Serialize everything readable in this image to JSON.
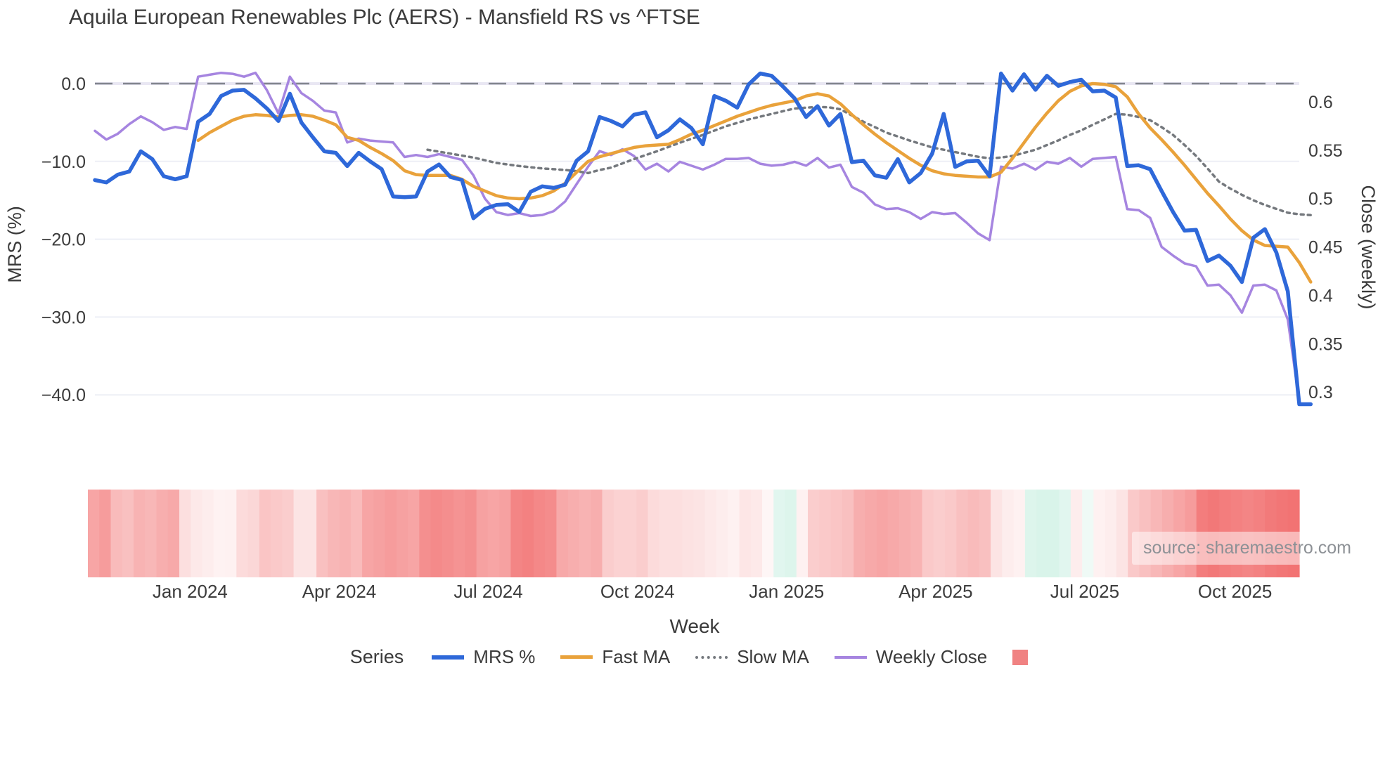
{
  "title": "Aquila European Renewables Plc (AERS) - Mansfield RS vs ^FTSE",
  "watermark": "source: sharemaestro.com",
  "axes": {
    "left": {
      "label": "MRS (%)",
      "tick_labels": [
        "0.0",
        "−10.0",
        "−20.0",
        "−30.0",
        "−40.0"
      ],
      "tick_values": [
        0,
        -10,
        -20,
        -30,
        -40
      ]
    },
    "right": {
      "label": "Close (weekly)",
      "tick_labels": [
        "0.6",
        "0.55",
        "0.5",
        "0.45",
        "0.4",
        "0.35",
        "0.3"
      ],
      "tick_values": [
        0.6,
        0.55,
        0.5,
        0.45,
        0.4,
        0.35,
        0.3
      ]
    },
    "bottom": {
      "label": "Week",
      "tick_labels": [
        "Jan 2024",
        "Apr 2024",
        "Jul 2024",
        "Oct 2024",
        "Jan 2025",
        "Apr 2025",
        "Jul 2025",
        "Oct 2025"
      ],
      "tick_weeks": [
        8.3,
        21.3,
        34.3,
        47.3,
        60.3,
        73.3,
        86.3,
        99.4
      ]
    }
  },
  "legend": {
    "title": "Series",
    "heat_swatch_color": "#f08282"
  },
  "colors": {
    "grid": "#edeff6",
    "zero_grid": "#e9e7f3",
    "zero_dash": "#82868e",
    "tick_text": "#3c3c3c",
    "axis_title_text": "#3a3a3a",
    "heat_neg_base": "#ee4b4b",
    "heat_pos_base": "#78d7b4"
  },
  "chart_data": {
    "type": "line",
    "x_unit": "week_index",
    "n_weeks": 106,
    "x_range_note": "weekly points, Nov 2023 through Nov 2025",
    "left_axis_range": [
      -44,
      2.8
    ],
    "right_axis_range": [
      0.28,
      0.635
    ],
    "grid": true,
    "zero_line": 0,
    "series": [
      {
        "name": "MRS %",
        "axis": "left",
        "color": "#2e68d9",
        "width": 5.5,
        "dash": "solid",
        "values": [
          -12.4,
          -12.7,
          -11.7,
          -11.3,
          -8.7,
          -9.7,
          -11.9,
          -12.3,
          -11.9,
          -4.9,
          -3.9,
          -1.6,
          -0.9,
          -0.8,
          -1.9,
          -3.2,
          -4.8,
          -1.3,
          -5.0,
          -6.9,
          -8.7,
          -8.9,
          -10.6,
          -8.9,
          -10.0,
          -11.0,
          -14.5,
          -14.6,
          -14.5,
          -11.3,
          -10.4,
          -12.0,
          -12.4,
          -17.3,
          -16.1,
          -15.6,
          -15.5,
          -16.5,
          -13.9,
          -13.2,
          -13.4,
          -13.0,
          -9.9,
          -8.7,
          -4.3,
          -4.8,
          -5.5,
          -4.0,
          -3.7,
          -6.9,
          -6.0,
          -4.6,
          -5.7,
          -7.8,
          -1.6,
          -2.2,
          -3.1,
          -0.1,
          1.3,
          1.0,
          -0.4,
          -1.9,
          -4.3,
          -2.9,
          -5.4,
          -3.9,
          -10.1,
          -9.9,
          -11.8,
          -12.1,
          -9.7,
          -12.7,
          -11.5,
          -9.0,
          -3.9,
          -10.7,
          -10.0,
          -9.9,
          -11.9,
          1.3,
          -0.9,
          1.2,
          -0.8,
          1.0,
          -0.3,
          0.2,
          0.5,
          -1.0,
          -0.9,
          -1.8,
          -10.6,
          -10.5,
          -11.0,
          -13.8,
          -16.5,
          -18.9,
          -18.8,
          -22.8,
          -22.1,
          -23.4,
          -25.5,
          -19.8,
          -18.7,
          -21.7,
          -26.7,
          -41.2,
          -41.2
        ]
      },
      {
        "name": "Fast MA",
        "axis": "left",
        "color": "#e9a23b",
        "width": 4.5,
        "dash": "solid",
        "values": [
          null,
          null,
          null,
          null,
          null,
          null,
          null,
          null,
          null,
          -7.3,
          -6.3,
          -5.5,
          -4.7,
          -4.2,
          -4.0,
          -4.1,
          -4.3,
          -4.1,
          -4.0,
          -4.2,
          -4.7,
          -5.3,
          -6.9,
          -7.3,
          -8.2,
          -9.0,
          -9.9,
          -11.2,
          -11.7,
          -11.8,
          -11.8,
          -11.8,
          -12.3,
          -13.2,
          -13.8,
          -14.4,
          -14.7,
          -14.8,
          -14.7,
          -14.4,
          -13.8,
          -12.8,
          -11.4,
          -10.0,
          -9.4,
          -9.0,
          -8.6,
          -8.2,
          -8.0,
          -7.9,
          -7.8,
          -7.2,
          -6.5,
          -6.0,
          -5.4,
          -4.8,
          -4.2,
          -3.7,
          -3.2,
          -2.8,
          -2.5,
          -2.2,
          -1.6,
          -1.3,
          -1.6,
          -2.6,
          -4.0,
          -5.3,
          -6.5,
          -7.6,
          -8.6,
          -9.6,
          -10.5,
          -11.2,
          -11.6,
          -11.8,
          -11.9,
          -12.0,
          -12.0,
          -11.4,
          -9.6,
          -7.6,
          -5.6,
          -3.8,
          -2.2,
          -1.0,
          -0.3,
          0.0,
          -0.1,
          -0.4,
          -1.7,
          -3.9,
          -5.7,
          -7.2,
          -8.8,
          -10.5,
          -12.3,
          -14.1,
          -15.7,
          -17.4,
          -18.9,
          -20.1,
          -20.8,
          -20.9,
          -21.0,
          -23.0,
          -25.5
        ]
      },
      {
        "name": "Slow MA",
        "axis": "left",
        "color": "#75797e",
        "width": 3.5,
        "dash": "dot",
        "values": [
          null,
          null,
          null,
          null,
          null,
          null,
          null,
          null,
          null,
          null,
          null,
          null,
          null,
          null,
          null,
          null,
          null,
          null,
          null,
          null,
          null,
          null,
          null,
          null,
          null,
          null,
          null,
          null,
          null,
          -8.5,
          -8.75,
          -9.0,
          -9.25,
          -9.5,
          -9.85,
          -10.2,
          -10.4,
          -10.6,
          -10.75,
          -10.9,
          -11.0,
          -11.1,
          -11.25,
          -11.5,
          -11.1,
          -10.8,
          -10.25,
          -9.7,
          -9.2,
          -8.7,
          -8.15,
          -7.6,
          -7.1,
          -6.6,
          -6.05,
          -5.5,
          -5.05,
          -4.6,
          -4.25,
          -3.9,
          -3.55,
          -3.2,
          -3.1,
          -3.0,
          -3.05,
          -3.3,
          -4.1,
          -4.9,
          -5.6,
          -6.3,
          -6.8,
          -7.3,
          -7.75,
          -8.2,
          -8.5,
          -8.8,
          -9.1,
          -9.4,
          -9.6,
          -9.5,
          -9.3,
          -8.9,
          -8.5,
          -7.9,
          -7.3,
          -6.6,
          -6.0,
          -5.3,
          -4.6,
          -3.9,
          -4.0,
          -4.3,
          -4.7,
          -5.6,
          -6.6,
          -7.9,
          -9.3,
          -10.9,
          -12.6,
          -13.5,
          -14.3,
          -15.0,
          -15.6,
          -16.1,
          -16.6,
          -16.8,
          -16.9
        ]
      },
      {
        "name": "Weekly Close",
        "axis": "right",
        "color": "#a685e0",
        "width": 3.5,
        "dash": "solid",
        "values": [
          0.57,
          0.561,
          0.567,
          0.577,
          0.585,
          0.579,
          0.571,
          0.574,
          0.572,
          0.626,
          0.628,
          0.63,
          0.629,
          0.626,
          0.63,
          0.612,
          0.588,
          0.626,
          0.609,
          0.601,
          0.591,
          0.589,
          0.558,
          0.562,
          0.56,
          0.559,
          0.558,
          0.543,
          0.545,
          0.543,
          0.546,
          0.543,
          0.54,
          0.524,
          0.5,
          0.486,
          0.483,
          0.485,
          0.482,
          0.483,
          0.487,
          0.497,
          0.515,
          0.533,
          0.549,
          0.545,
          0.551,
          0.544,
          0.53,
          0.536,
          0.528,
          0.538,
          0.534,
          0.53,
          0.535,
          0.541,
          0.541,
          0.542,
          0.536,
          0.534,
          0.535,
          0.538,
          0.534,
          0.542,
          0.532,
          0.535,
          0.512,
          0.506,
          0.494,
          0.489,
          0.49,
          0.486,
          0.479,
          0.486,
          0.484,
          0.485,
          0.475,
          0.464,
          0.457,
          0.533,
          0.531,
          0.536,
          0.53,
          0.538,
          0.536,
          0.542,
          0.533,
          0.541,
          0.542,
          0.543,
          0.489,
          0.488,
          0.48,
          0.45,
          0.441,
          0.433,
          0.43,
          0.41,
          0.411,
          0.4,
          0.382,
          0.41,
          0.411,
          0.405,
          0.375,
          0.29
        ]
      }
    ],
    "heatmap": {
      "description": "weekly relative-strength heat strip, negative=red positive=green",
      "values": [
        -0.5,
        -0.55,
        -0.38,
        -0.35,
        -0.42,
        -0.4,
        -0.45,
        -0.48,
        -0.18,
        -0.12,
        -0.1,
        -0.07,
        -0.08,
        -0.2,
        -0.22,
        -0.32,
        -0.3,
        -0.28,
        -0.15,
        -0.15,
        -0.35,
        -0.4,
        -0.42,
        -0.38,
        -0.5,
        -0.52,
        -0.55,
        -0.52,
        -0.5,
        -0.62,
        -0.65,
        -0.63,
        -0.6,
        -0.62,
        -0.52,
        -0.5,
        -0.52,
        -0.68,
        -0.7,
        -0.66,
        -0.64,
        -0.48,
        -0.45,
        -0.42,
        -0.45,
        -0.28,
        -0.25,
        -0.25,
        -0.28,
        -0.2,
        -0.18,
        -0.18,
        -0.16,
        -0.15,
        -0.12,
        -0.1,
        -0.08,
        -0.14,
        -0.12,
        -0.05,
        0.22,
        0.25,
        -0.08,
        -0.28,
        -0.3,
        -0.32,
        -0.35,
        -0.45,
        -0.48,
        -0.5,
        -0.48,
        -0.45,
        -0.42,
        -0.3,
        -0.28,
        -0.3,
        -0.35,
        -0.38,
        -0.35,
        -0.15,
        -0.1,
        -0.08,
        0.25,
        0.28,
        0.28,
        0.22,
        -0.1,
        0.12,
        -0.08,
        -0.1,
        -0.15,
        -0.3,
        -0.35,
        -0.4,
        -0.45,
        -0.5,
        -0.55,
        -0.72,
        -0.75,
        -0.72,
        -0.7,
        -0.68,
        -0.7,
        -0.74,
        -0.76,
        -0.78
      ]
    }
  }
}
